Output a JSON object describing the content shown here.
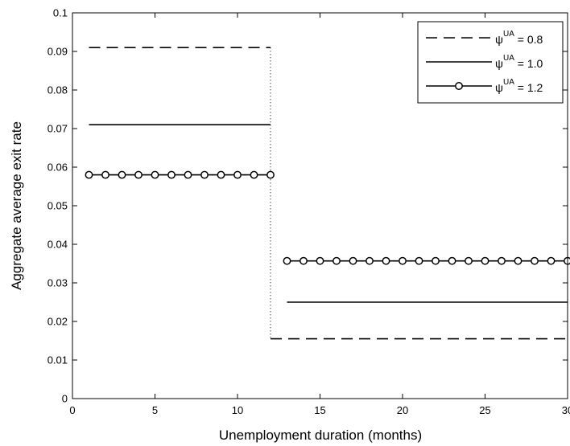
{
  "chart_data": {
    "type": "line",
    "xlabel": "Unemployment duration (months)",
    "ylabel": "Aggregate average exit rate",
    "xlim": [
      0,
      30
    ],
    "ylim": [
      0,
      0.1
    ],
    "xticks": [
      "0",
      "5",
      "10",
      "15",
      "20",
      "25",
      "30"
    ],
    "yticks": [
      "0",
      "0.01",
      "0.02",
      "0.03",
      "0.04",
      "0.05",
      "0.06",
      "0.07",
      "0.08",
      "0.09",
      "0.1"
    ],
    "grid": false,
    "legend_position": "top-right",
    "break_x": 12,
    "series": [
      {
        "name": "ψ^UA = 0.8",
        "legend_symbol": "ψ",
        "legend_sup": "UA",
        "legend_value": " = 0.8",
        "style": "dashed",
        "markers": false,
        "segments": [
          {
            "x_start": 1,
            "x_end": 12,
            "y": 0.091
          },
          {
            "x_start": 12,
            "x_end": 30,
            "y": 0.0155
          }
        ]
      },
      {
        "name": "ψ^UA = 1.0",
        "legend_symbol": "ψ",
        "legend_sup": "UA",
        "legend_value": " = 1.0",
        "style": "solid",
        "markers": false,
        "segments": [
          {
            "x_start": 1,
            "x_end": 12,
            "y": 0.071
          },
          {
            "x_start": 13,
            "x_end": 30,
            "y": 0.025
          }
        ]
      },
      {
        "name": "ψ^UA = 1.2",
        "legend_symbol": "ψ",
        "legend_sup": "UA",
        "legend_value": " = 1.2",
        "style": "solid",
        "markers": true,
        "x": [
          1,
          2,
          3,
          4,
          5,
          6,
          7,
          8,
          9,
          10,
          11,
          12,
          13,
          14,
          15,
          16,
          17,
          18,
          19,
          20,
          21,
          22,
          23,
          24,
          25,
          26,
          27,
          28,
          29,
          30
        ],
        "y": [
          0.058,
          0.058,
          0.058,
          0.058,
          0.058,
          0.058,
          0.058,
          0.058,
          0.058,
          0.058,
          0.058,
          0.058,
          0.0357,
          0.0357,
          0.0357,
          0.0357,
          0.0357,
          0.0357,
          0.0357,
          0.0357,
          0.0357,
          0.0357,
          0.0357,
          0.0357,
          0.0357,
          0.0357,
          0.0357,
          0.0357,
          0.0357,
          0.0357
        ]
      }
    ]
  }
}
